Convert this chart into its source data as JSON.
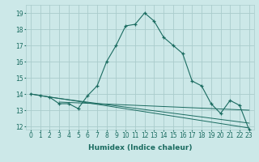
{
  "title": "",
  "xlabel": "Humidex (Indice chaleur)",
  "ylabel": "",
  "bg_color": "#cce8e8",
  "grid_color": "#aacccc",
  "line_color": "#1a6b60",
  "xlim": [
    -0.5,
    23.5
  ],
  "ylim": [
    11.8,
    19.5
  ],
  "xticks": [
    0,
    1,
    2,
    3,
    4,
    5,
    6,
    7,
    8,
    9,
    10,
    11,
    12,
    13,
    14,
    15,
    16,
    17,
    18,
    19,
    20,
    21,
    22,
    23
  ],
  "yticks": [
    12,
    13,
    14,
    15,
    16,
    17,
    18,
    19
  ],
  "series": [
    {
      "x": [
        0,
        1,
        2,
        3,
        4,
        5,
        6,
        7,
        8,
        9,
        10,
        11,
        12,
        13,
        14,
        15,
        16,
        17,
        18,
        19,
        20,
        21,
        22,
        23
      ],
      "y": [
        14.0,
        13.9,
        13.8,
        13.4,
        13.4,
        13.1,
        13.9,
        14.5,
        16.0,
        17.0,
        18.2,
        18.3,
        19.0,
        18.5,
        17.5,
        17.0,
        16.5,
        14.8,
        14.5,
        13.4,
        12.8,
        13.6,
        13.3,
        11.8
      ],
      "marker": true
    },
    {
      "x": [
        0,
        23
      ],
      "y": [
        14.0,
        11.9
      ],
      "marker": false
    },
    {
      "x": [
        2,
        23
      ],
      "y": [
        13.8,
        12.2
      ],
      "marker": false
    },
    {
      "x": [
        3,
        23
      ],
      "y": [
        13.5,
        13.0
      ],
      "marker": false
    }
  ],
  "xlabel_fontsize": 6.5,
  "tick_fontsize": 5.5,
  "tick_color": "#1a6b60",
  "xlabel_color": "#1a6b60",
  "xlabel_bold": true
}
